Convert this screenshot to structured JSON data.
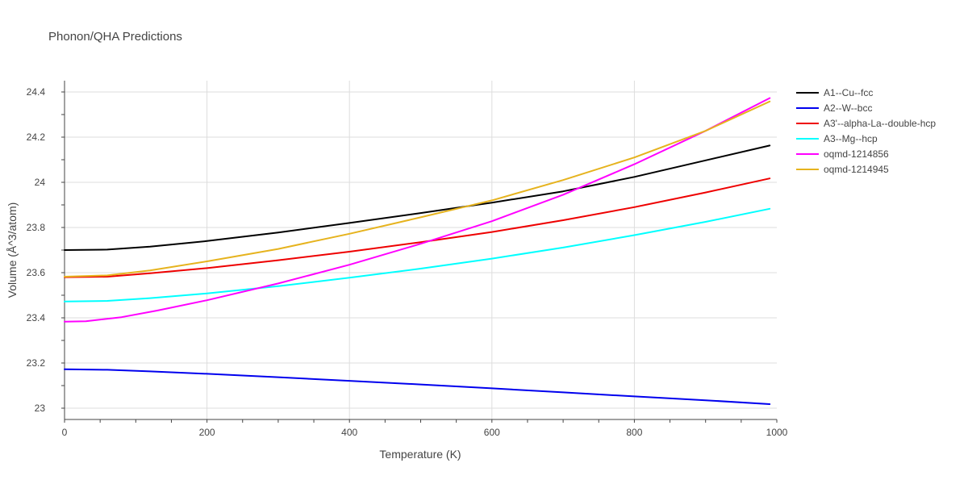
{
  "chart_data": {
    "type": "line",
    "title": "Phonon/QHA Predictions",
    "xlabel": "Temperature (K)",
    "ylabel": "Volume (Å^3/atom)",
    "xlim": [
      0,
      1000
    ],
    "ylim": [
      22.95,
      24.45
    ],
    "xticks": [
      0,
      200,
      400,
      600,
      800,
      1000
    ],
    "yticks": [
      23,
      23.2,
      23.4,
      23.6,
      23.8,
      24,
      24.2,
      24.4
    ],
    "grid": true,
    "legend_position": "top-right",
    "series": [
      {
        "name": "A1--Cu--fcc",
        "color": "#000000",
        "x": [
          0,
          60,
          120,
          200,
          300,
          400,
          500,
          600,
          700,
          800,
          900,
          990
        ],
        "y": [
          23.7,
          23.702,
          23.715,
          23.74,
          23.778,
          23.82,
          23.864,
          23.91,
          23.96,
          24.024,
          24.097,
          24.163
        ]
      },
      {
        "name": "A2--W--bcc",
        "color": "#0000ee",
        "x": [
          0,
          60,
          120,
          200,
          300,
          400,
          500,
          600,
          700,
          800,
          900,
          990
        ],
        "y": [
          23.172,
          23.17,
          23.163,
          23.152,
          23.137,
          23.121,
          23.105,
          23.088,
          23.07,
          23.052,
          23.035,
          23.018
        ]
      },
      {
        "name": "A3'--alpha-La--double-hcp",
        "color": "#ee0000",
        "x": [
          0,
          60,
          120,
          200,
          300,
          400,
          500,
          600,
          700,
          800,
          900,
          990
        ],
        "y": [
          23.58,
          23.582,
          23.597,
          23.62,
          23.655,
          23.693,
          23.735,
          23.78,
          23.832,
          23.89,
          23.955,
          24.017
        ]
      },
      {
        "name": "A3--Mg--hcp",
        "color": "#00ffff",
        "x": [
          0,
          60,
          120,
          200,
          300,
          400,
          500,
          600,
          700,
          800,
          900,
          990
        ],
        "y": [
          23.472,
          23.475,
          23.487,
          23.508,
          23.54,
          23.578,
          23.618,
          23.662,
          23.711,
          23.766,
          23.825,
          23.883
        ]
      },
      {
        "name": "oqmd-1214856",
        "color": "#ff00ff",
        "x": [
          0,
          30,
          80,
          130,
          200,
          300,
          400,
          500,
          600,
          700,
          800,
          900,
          990
        ],
        "y": [
          23.383,
          23.385,
          23.403,
          23.432,
          23.478,
          23.552,
          23.635,
          23.728,
          23.828,
          23.945,
          24.08,
          24.228,
          24.373
        ]
      },
      {
        "name": "oqmd-1214945",
        "color": "#e6b31e",
        "x": [
          0,
          60,
          120,
          200,
          300,
          400,
          500,
          600,
          700,
          800,
          900,
          990
        ],
        "y": [
          23.582,
          23.588,
          23.61,
          23.65,
          23.705,
          23.772,
          23.845,
          23.92,
          24.01,
          24.11,
          24.228,
          24.358
        ]
      }
    ]
  }
}
